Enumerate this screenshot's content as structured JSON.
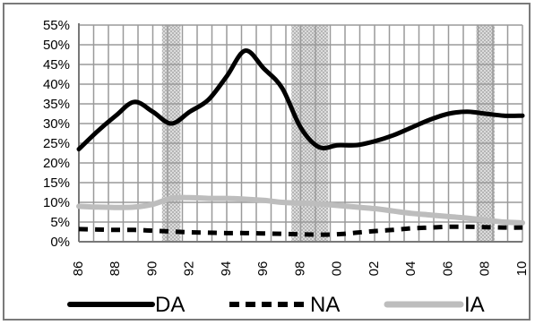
{
  "chart_data": {
    "type": "line",
    "title": "",
    "xlabel": "",
    "ylabel": "",
    "x": [
      "86",
      "87",
      "88",
      "89",
      "90",
      "91",
      "92",
      "93",
      "94",
      "95",
      "96",
      "97",
      "98",
      "99",
      "00",
      "01",
      "02",
      "03",
      "04",
      "05",
      "06",
      "07",
      "08",
      "09",
      "10"
    ],
    "x_tick_labels": [
      "86",
      "88",
      "90",
      "92",
      "94",
      "96",
      "98",
      "00",
      "02",
      "04",
      "06",
      "08",
      "10"
    ],
    "y_tick_labels": [
      "0%",
      "5%",
      "10%",
      "15%",
      "20%",
      "25%",
      "30%",
      "35%",
      "40%",
      "45%",
      "50%",
      "55%"
    ],
    "ylim": [
      0,
      55
    ],
    "y_unit": "%",
    "grid": true,
    "legend_position": "bottom",
    "shaded_periods": [
      [
        "90.5",
        "91.5"
      ],
      [
        "97.5",
        "99.5"
      ],
      [
        "07.5",
        "08.5"
      ]
    ],
    "series": [
      {
        "name": "DA",
        "color": "#000000",
        "style": "solid",
        "values": [
          23.5,
          28,
          32,
          35.5,
          33,
          30,
          33,
          36,
          42,
          48.5,
          44,
          39,
          29,
          24,
          24.5,
          24.5,
          25.5,
          27,
          29,
          31,
          32.5,
          33,
          32.5,
          32,
          32
        ]
      },
      {
        "name": "NA",
        "color": "#000000",
        "style": "dashed",
        "values": [
          3.2,
          3.1,
          3,
          3,
          2.8,
          2.6,
          2.4,
          2.3,
          2.2,
          2.2,
          2.1,
          2,
          1.9,
          1.8,
          1.9,
          2.3,
          2.7,
          3,
          3.4,
          3.6,
          3.8,
          3.8,
          3.7,
          3.6,
          3.6
        ]
      },
      {
        "name": "IA",
        "color": "#bdbdbd",
        "style": "solid",
        "values": [
          9,
          8.8,
          8.7,
          8.8,
          9.5,
          11,
          11.2,
          11,
          11,
          10.8,
          10.5,
          10,
          9.8,
          9.6,
          9.2,
          8.8,
          8.4,
          7.8,
          7.2,
          6.8,
          6.4,
          6,
          5.5,
          5,
          4.8
        ]
      }
    ]
  }
}
